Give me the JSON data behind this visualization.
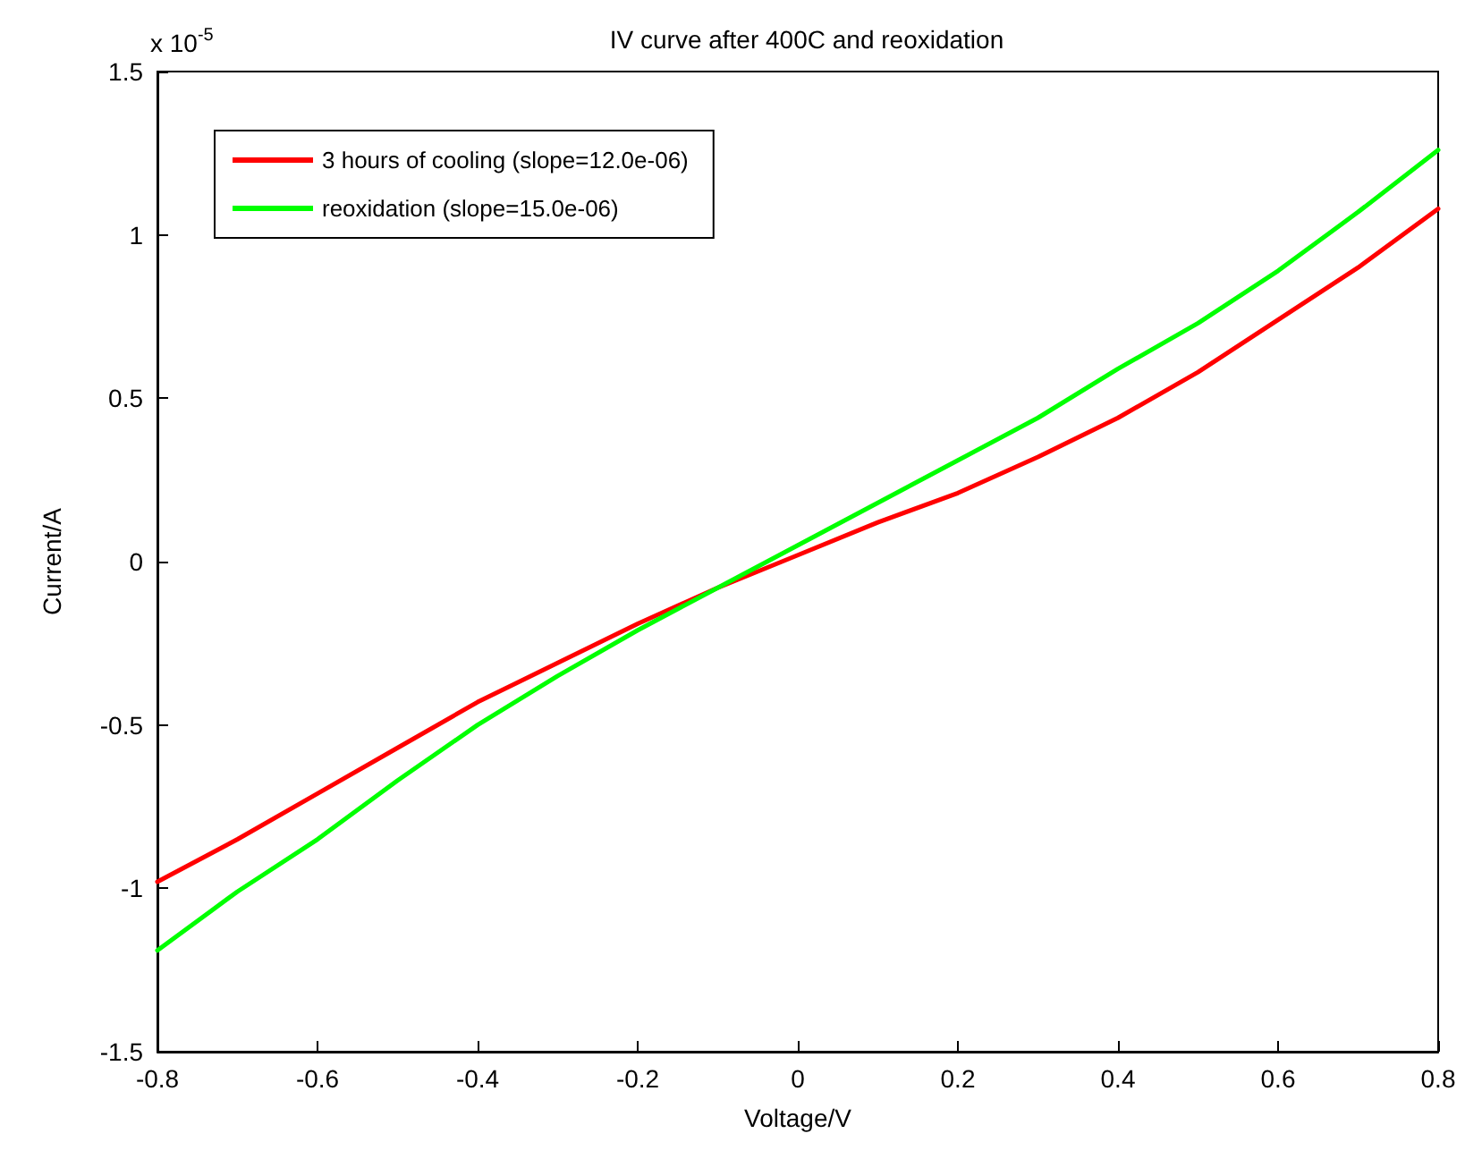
{
  "chart_data": {
    "type": "line",
    "title": "IV curve after 400C and reoxidation",
    "xlabel": "Voltage/V",
    "ylabel": "Current/A",
    "annotations": [
      "x 10$^{-5}$"
    ],
    "x": [
      -0.8,
      -0.7,
      -0.6,
      -0.5,
      -0.4,
      -0.3,
      -0.2,
      -0.1,
      0,
      0.1,
      0.2,
      0.3,
      0.4,
      0.5,
      0.6,
      0.7,
      0.8
    ],
    "series": [
      {
        "name": "3 hours of cooling (slope=12.0e-06)",
        "color": "#ff0000",
        "values": [
          -0.98,
          -0.85,
          -0.71,
          -0.57,
          -0.43,
          -0.31,
          -0.19,
          -0.08,
          0.02,
          0.12,
          0.21,
          0.32,
          0.44,
          0.58,
          0.74,
          0.9,
          1.08
        ]
      },
      {
        "name": "reoxidation (slope=15.0e-06)",
        "color": "#00ff00",
        "values": [
          -1.19,
          -1.01,
          -0.85,
          -0.67,
          -0.5,
          -0.35,
          -0.21,
          -0.08,
          0.05,
          0.18,
          0.31,
          0.44,
          0.59,
          0.73,
          0.89,
          1.07,
          1.26
        ]
      }
    ],
    "xlim": [
      -0.8,
      0.8
    ],
    "xticks": [
      -0.8,
      -0.6,
      -0.4,
      -0.2,
      0,
      0.2,
      0.4,
      0.6,
      0.8
    ],
    "ylim": [
      -1.5,
      1.5
    ],
    "yticks": [
      -1.5,
      -1,
      -0.5,
      0,
      0.5,
      1,
      1.5
    ],
    "grid": false,
    "legend": "top left",
    "marker": "none",
    "line_style": "solid"
  }
}
